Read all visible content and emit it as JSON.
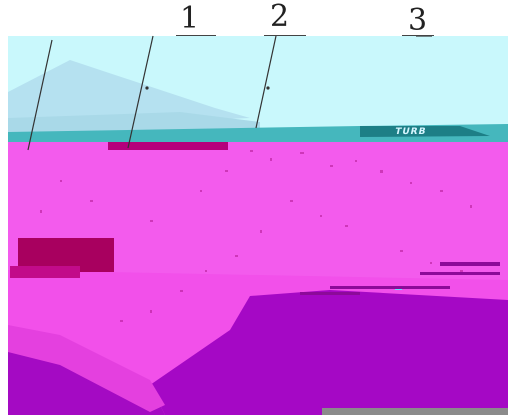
{
  "callouts": [
    {
      "id": "1",
      "label": "1"
    },
    {
      "id": "2",
      "label": "2"
    },
    {
      "id": "3",
      "label": "3"
    }
  ],
  "part_label": "TURB",
  "colors": {
    "background": "#ffffff",
    "surface_pink": "#f24fe9",
    "surface_purple": "#a607c6",
    "cyan_panel": "#c8f7fb",
    "teal_band": "#1f8b92",
    "dark_magenta": "#a6006b",
    "leader_line": "#333333"
  }
}
